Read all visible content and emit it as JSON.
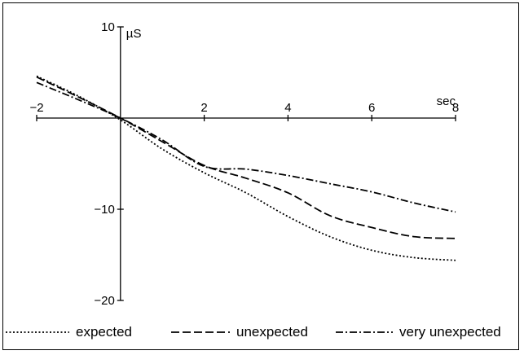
{
  "chart_data": {
    "type": "line",
    "title": "",
    "xlabel": "sec",
    "ylabel": "µS",
    "xlim": [
      -2,
      8
    ],
    "ylim": [
      -20,
      10
    ],
    "x_ticks": [
      -2,
      2,
      4,
      6,
      8
    ],
    "x_tick_labels": [
      "−2",
      "2",
      "4",
      "6",
      "8"
    ],
    "y_ticks": [
      10,
      -10,
      -20
    ],
    "y_tick_labels": [
      "10",
      "−10",
      "−20"
    ],
    "grid": false,
    "legend_position": "bottom",
    "x": [
      -2,
      -1,
      0,
      1,
      2,
      3,
      4,
      5,
      6,
      7,
      8
    ],
    "series": [
      {
        "name": "expected",
        "style": "dotted",
        "values": [
          4.6,
          2.4,
          -0.2,
          -3.4,
          -6.0,
          -8.2,
          -10.8,
          -13.0,
          -14.5,
          -15.3,
          -15.6
        ]
      },
      {
        "name": "unexpected",
        "style": "dashed",
        "values": [
          4.5,
          2.3,
          0.0,
          -2.6,
          -5.2,
          -6.6,
          -8.2,
          -10.7,
          -12.0,
          -13.0,
          -13.2
        ]
      },
      {
        "name": "very unexpected",
        "style": "dashdot",
        "values": [
          3.9,
          2.0,
          0.0,
          -2.4,
          -5.3,
          -5.6,
          -6.3,
          -7.2,
          -8.1,
          -9.3,
          -10.3
        ]
      }
    ],
    "colors": {
      "line": "#000000",
      "background": "#ffffff"
    }
  }
}
